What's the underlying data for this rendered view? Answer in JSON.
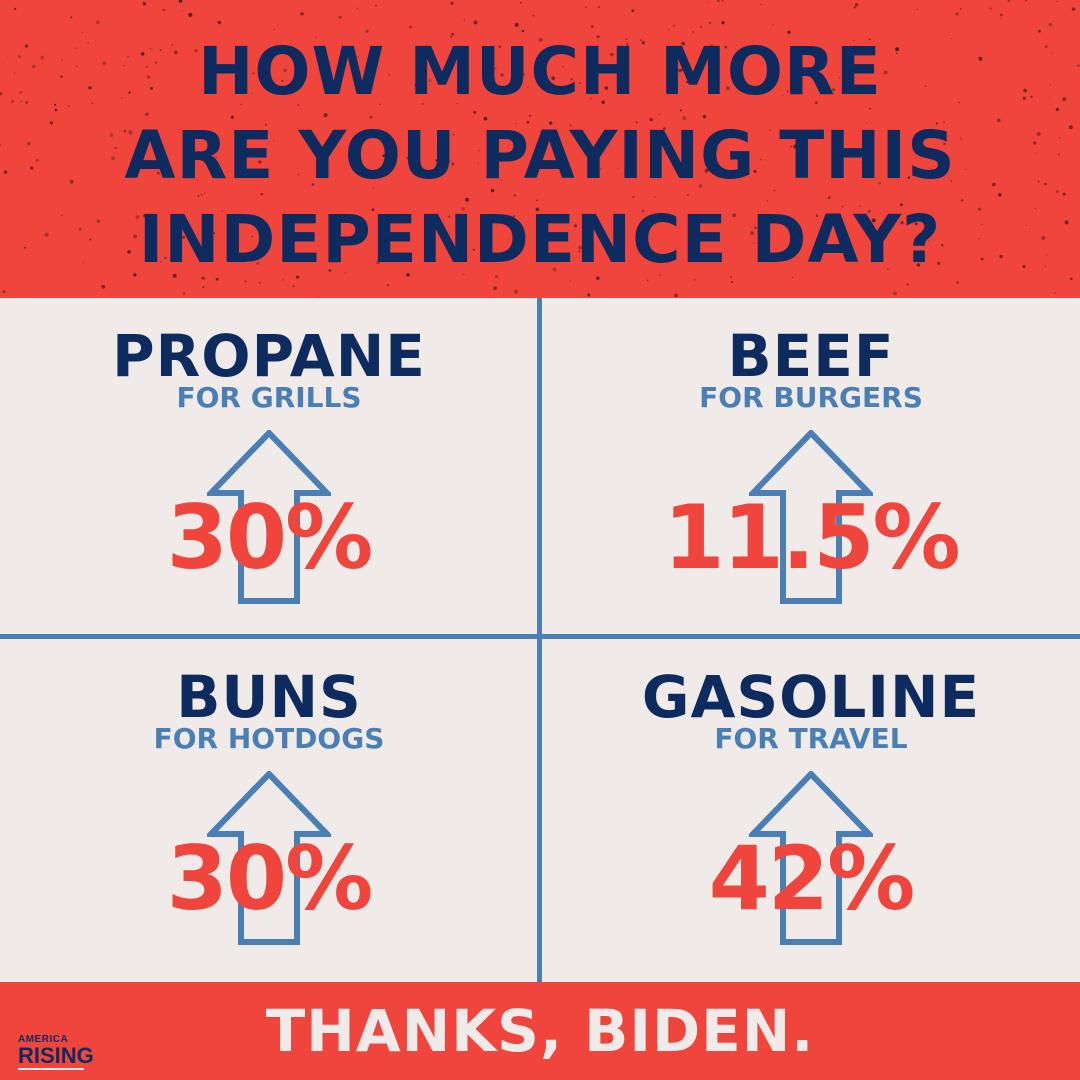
{
  "headline": {
    "lines": [
      "HOW MUCH MORE",
      "ARE YOU PAYING THIS",
      "INDEPENDENCE DAY?"
    ]
  },
  "items": [
    {
      "title": "PROPANE",
      "subtitle": "FOR GRILLS",
      "increase": "30%"
    },
    {
      "title": "BEEF",
      "subtitle": "FOR BURGERS",
      "increase": "11.5%"
    },
    {
      "title": "BUNS",
      "subtitle": "FOR HOTDOGS",
      "increase": "30%"
    },
    {
      "title": "GASOLINE",
      "subtitle": "FOR TRAVEL",
      "increase": "42%"
    }
  ],
  "footer": {
    "text": "THANKS, BIDEN."
  },
  "logo": {
    "top_text": "AMERICA",
    "main_text": "RISING"
  },
  "colors": {
    "red": "#f0453c",
    "navy": "#0d2b5e",
    "blue": "#4a7fb5",
    "background": "#f0ebe8"
  },
  "icons": {
    "increase_arrow": "up-arrow-outline-icon"
  }
}
